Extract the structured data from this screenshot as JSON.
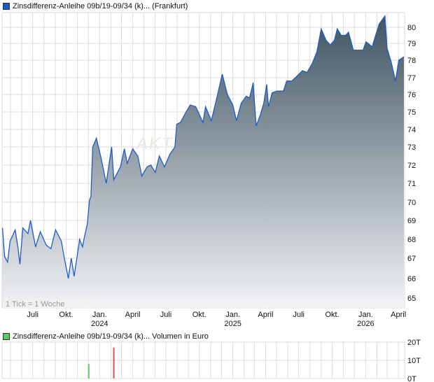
{
  "price_legend": {
    "label": "Zinsdifferenz-Anleihe 09b/19-09/34 (k)... (Frankfurt)",
    "color": "#1f5bc8"
  },
  "volume_legend": {
    "label": "Zinsdifferenz-Anleihe 09b/19-09/34 (k)... Volumen in Euro",
    "color": "#5ec85e"
  },
  "tick_note": "1 Tick = 1 Woche",
  "watermark": "AKTI",
  "chart_data": [
    {
      "type": "area",
      "title": "Zinsdifferenz-Anleihe 09b/19-09/34 (k)... (Frankfurt)",
      "line_color": "#1f5bc8",
      "fill_gradient": [
        "#3f5462",
        "#f2f3f5"
      ],
      "grid": true,
      "xlim": [
        "2023-04-08",
        "2026-04-18"
      ],
      "ylim": [
        64.4,
        81.2
      ],
      "y_ticks": [
        65,
        66,
        67,
        68,
        69,
        70,
        71,
        72,
        73,
        74,
        75,
        76,
        77,
        78,
        79,
        80
      ],
      "x_tick_labels": [
        {
          "date": "2023-07-01",
          "label": "Juli",
          "year": ""
        },
        {
          "date": "2023-10-01",
          "label": "Okt.",
          "year": ""
        },
        {
          "date": "2024-01-01",
          "label": "Jan.",
          "year": "2024"
        },
        {
          "date": "2024-04-01",
          "label": "April",
          "year": ""
        },
        {
          "date": "2024-07-01",
          "label": "Juli",
          "year": ""
        },
        {
          "date": "2024-10-01",
          "label": "Okt.",
          "year": ""
        },
        {
          "date": "2025-01-01",
          "label": "Jan.",
          "year": "2025"
        },
        {
          "date": "2025-04-01",
          "label": "April",
          "year": ""
        },
        {
          "date": "2025-07-01",
          "label": "Juli",
          "year": ""
        },
        {
          "date": "2025-10-01",
          "label": "Okt.",
          "year": ""
        },
        {
          "date": "2026-01-01",
          "label": "Jan.",
          "year": "2026"
        },
        {
          "date": "2026-04-01",
          "label": "April",
          "year": ""
        }
      ],
      "points": [
        [
          "2023-04-09",
          68.6
        ],
        [
          "2023-04-15",
          67.1
        ],
        [
          "2023-04-23",
          66.8
        ],
        [
          "2023-04-30",
          67.9
        ],
        [
          "2023-05-14",
          68.5
        ],
        [
          "2023-05-22",
          67.5
        ],
        [
          "2023-05-27",
          66.7
        ],
        [
          "2023-06-04",
          68.6
        ],
        [
          "2023-06-18",
          68.3
        ],
        [
          "2023-06-25",
          69.0
        ],
        [
          "2023-07-09",
          67.6
        ],
        [
          "2023-07-22",
          68.4
        ],
        [
          "2023-08-07",
          67.7
        ],
        [
          "2023-08-20",
          67.5
        ],
        [
          "2023-09-02",
          68.5
        ],
        [
          "2023-09-18",
          67.9
        ],
        [
          "2023-09-26",
          67.0
        ],
        [
          "2023-10-07",
          66.0
        ],
        [
          "2023-10-15",
          67.0
        ],
        [
          "2023-10-23",
          66.1
        ],
        [
          "2023-11-01",
          67.2
        ],
        [
          "2023-11-07",
          68.0
        ],
        [
          "2023-11-15",
          67.6
        ],
        [
          "2023-11-20",
          68.1
        ],
        [
          "2023-11-28",
          68.8
        ],
        [
          "2023-12-04",
          70.1
        ],
        [
          "2023-12-08",
          70.3
        ],
        [
          "2023-12-13",
          73.0
        ],
        [
          "2023-12-23",
          73.5
        ],
        [
          "2024-01-06",
          72.3
        ],
        [
          "2024-01-19",
          71.0
        ],
        [
          "2024-02-03",
          73.0
        ],
        [
          "2024-02-09",
          71.2
        ],
        [
          "2024-02-27",
          71.9
        ],
        [
          "2024-03-09",
          72.9
        ],
        [
          "2024-03-17",
          72.1
        ],
        [
          "2024-04-01",
          72.9
        ],
        [
          "2024-04-15",
          72.5
        ],
        [
          "2024-04-26",
          71.4
        ],
        [
          "2024-05-10",
          71.9
        ],
        [
          "2024-05-21",
          72.0
        ],
        [
          "2024-06-02",
          71.6
        ],
        [
          "2024-06-13",
          72.5
        ],
        [
          "2024-06-27",
          71.9
        ],
        [
          "2024-07-12",
          72.6
        ],
        [
          "2024-07-26",
          73.0
        ],
        [
          "2024-07-31",
          74.3
        ],
        [
          "2024-08-10",
          74.4
        ],
        [
          "2024-08-23",
          74.9
        ],
        [
          "2024-09-06",
          75.4
        ],
        [
          "2024-09-21",
          75.3
        ],
        [
          "2024-10-11",
          74.4
        ],
        [
          "2024-10-18",
          75.3
        ],
        [
          "2024-11-03",
          74.5
        ],
        [
          "2024-11-18",
          75.8
        ],
        [
          "2024-12-03",
          77.2
        ],
        [
          "2024-12-17",
          76.0
        ],
        [
          "2025-01-01",
          75.4
        ],
        [
          "2025-01-11",
          74.5
        ],
        [
          "2025-01-24",
          75.5
        ],
        [
          "2025-02-07",
          75.9
        ],
        [
          "2025-02-16",
          75.8
        ],
        [
          "2025-02-26",
          76.7
        ],
        [
          "2025-03-06",
          74.2
        ],
        [
          "2025-03-17",
          74.8
        ],
        [
          "2025-03-27",
          75.5
        ],
        [
          "2025-04-04",
          76.6
        ],
        [
          "2025-04-09",
          75.3
        ],
        [
          "2025-04-19",
          76.1
        ],
        [
          "2025-05-02",
          76.2
        ],
        [
          "2025-05-20",
          76.2
        ],
        [
          "2025-05-29",
          76.8
        ],
        [
          "2025-06-12",
          76.8
        ],
        [
          "2025-06-27",
          77.1
        ],
        [
          "2025-07-11",
          77.4
        ],
        [
          "2025-07-24",
          77.3
        ],
        [
          "2025-08-07",
          77.8
        ],
        [
          "2025-08-20",
          78.5
        ],
        [
          "2025-09-01",
          79.9
        ],
        [
          "2025-09-14",
          79.2
        ],
        [
          "2025-09-26",
          78.9
        ],
        [
          "2025-10-07",
          79.2
        ],
        [
          "2025-10-15",
          79.9
        ],
        [
          "2025-10-26",
          79.5
        ],
        [
          "2025-11-07",
          79.5
        ],
        [
          "2025-11-15",
          79.7
        ],
        [
          "2025-11-22",
          79.1
        ],
        [
          "2025-11-28",
          78.6
        ],
        [
          "2025-12-10",
          78.6
        ],
        [
          "2025-12-25",
          78.6
        ],
        [
          "2026-01-02",
          79.1
        ],
        [
          "2026-01-19",
          78.8
        ],
        [
          "2026-01-27",
          79.4
        ],
        [
          "2026-02-07",
          80.2
        ],
        [
          "2026-02-23",
          80.7
        ],
        [
          "2026-03-01",
          78.7
        ],
        [
          "2026-03-12",
          77.9
        ],
        [
          "2026-03-24",
          76.8
        ],
        [
          "2026-04-02",
          78.0
        ],
        [
          "2026-04-16",
          78.2
        ]
      ]
    },
    {
      "type": "bar",
      "title": "Zinsdifferenz-Anleihe 09b/19-09/34 (k)... Volumen in Euro",
      "ylim": [
        0,
        20
      ],
      "y_unit": "T",
      "y_tick_labels": [
        "0T",
        "10T",
        "20T"
      ],
      "bars": [
        {
          "date": "2023-12-02",
          "value": 8,
          "color": "#5ec85e"
        },
        {
          "date": "2024-02-09",
          "value": 17,
          "color": "#e05050"
        }
      ]
    }
  ]
}
